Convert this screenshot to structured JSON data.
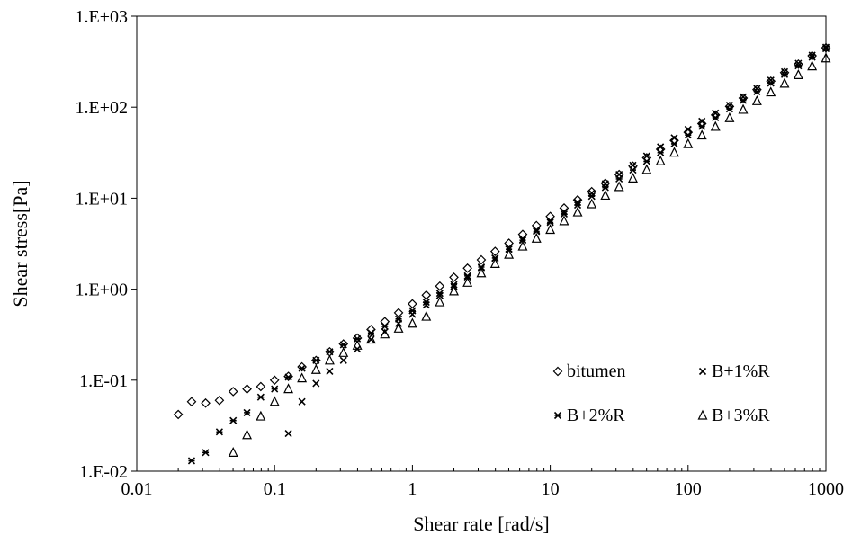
{
  "chart_data": {
    "type": "scatter",
    "xlabel": "Shear rate [rad/s]",
    "ylabel": "Shear stress[Pa]",
    "xscale": "log",
    "yscale": "log",
    "xlim": [
      0.01,
      1000
    ],
    "ylim": [
      0.01,
      1000
    ],
    "x_ticks": [
      "0.01",
      "0.1",
      "1",
      "10",
      "100",
      "1000"
    ],
    "y_ticks": [
      "1.E-02",
      "1.E-01",
      "1.E+00",
      "1.E+01",
      "1.E+02",
      "1.E+03"
    ],
    "grid": false,
    "legend_position": "bottom-right",
    "series": [
      {
        "name": "bitumen",
        "marker": "diamond",
        "points": [
          [
            0.02,
            0.042
          ],
          [
            0.025,
            0.058
          ],
          [
            0.0316,
            0.056
          ],
          [
            0.0398,
            0.06
          ],
          [
            0.0501,
            0.075
          ],
          [
            0.0631,
            0.08
          ],
          [
            0.0794,
            0.085
          ],
          [
            0.1,
            0.1
          ],
          [
            0.126,
            0.11
          ],
          [
            0.158,
            0.14
          ],
          [
            0.2,
            0.165
          ],
          [
            0.251,
            0.205
          ],
          [
            0.316,
            0.25
          ],
          [
            0.398,
            0.29
          ],
          [
            0.501,
            0.36
          ],
          [
            0.631,
            0.44
          ],
          [
            0.794,
            0.55
          ],
          [
            1,
            0.69
          ],
          [
            1.26,
            0.86
          ],
          [
            1.58,
            1.08
          ],
          [
            2,
            1.35
          ],
          [
            2.51,
            1.7
          ],
          [
            3.16,
            2.1
          ],
          [
            3.98,
            2.6
          ],
          [
            5.01,
            3.2
          ],
          [
            6.31,
            4.0
          ],
          [
            7.94,
            5.0
          ],
          [
            10,
            6.3
          ],
          [
            12.6,
            7.8
          ],
          [
            15.8,
            9.6
          ],
          [
            20,
            11.8
          ],
          [
            25.1,
            14.6
          ],
          [
            31.6,
            18.2
          ],
          [
            39.8,
            22.5
          ],
          [
            50.1,
            27.8
          ],
          [
            63.1,
            34.5
          ],
          [
            79.4,
            43
          ],
          [
            100,
            53
          ],
          [
            126,
            66
          ],
          [
            158,
            82
          ],
          [
            200,
            102
          ],
          [
            251,
            126
          ],
          [
            316,
            156
          ],
          [
            398,
            193
          ],
          [
            501,
            240
          ],
          [
            631,
            297
          ],
          [
            794,
            367
          ],
          [
            1000,
            450
          ]
        ]
      },
      {
        "name": "B+1%R",
        "marker": "x",
        "points": [
          [
            0.126,
            0.026
          ],
          [
            0.158,
            0.058
          ],
          [
            0.2,
            0.092
          ],
          [
            0.251,
            0.125
          ],
          [
            0.316,
            0.165
          ],
          [
            0.398,
            0.22
          ],
          [
            0.501,
            0.28
          ],
          [
            0.631,
            0.34
          ],
          [
            0.794,
            0.42
          ],
          [
            1,
            0.53
          ],
          [
            1.26,
            0.67
          ],
          [
            1.58,
            0.85
          ],
          [
            2,
            1.07
          ],
          [
            2.51,
            1.36
          ],
          [
            3.16,
            1.72
          ],
          [
            3.98,
            2.18
          ],
          [
            5.01,
            2.76
          ],
          [
            6.31,
            3.5
          ],
          [
            7.94,
            4.42
          ],
          [
            10,
            5.6
          ],
          [
            12.6,
            7.1
          ],
          [
            15.8,
            9.0
          ],
          [
            20,
            11.4
          ],
          [
            25.1,
            14.4
          ],
          [
            31.6,
            18.2
          ],
          [
            39.8,
            23
          ],
          [
            50.1,
            29
          ],
          [
            63.1,
            36.6
          ],
          [
            79.4,
            46
          ],
          [
            100,
            57
          ],
          [
            126,
            70
          ],
          [
            158,
            86
          ],
          [
            200,
            105
          ],
          [
            251,
            130
          ],
          [
            316,
            160
          ],
          [
            398,
            198
          ],
          [
            501,
            245
          ],
          [
            631,
            303
          ],
          [
            794,
            372
          ],
          [
            1000,
            455
          ]
        ]
      },
      {
        "name": "B+2%R",
        "marker": "asterisk",
        "points": [
          [
            0.025,
            0.013
          ],
          [
            0.0316,
            0.016
          ],
          [
            0.0398,
            0.027
          ],
          [
            0.0501,
            0.036
          ],
          [
            0.0631,
            0.044
          ],
          [
            0.0794,
            0.065
          ],
          [
            0.1,
            0.08
          ],
          [
            0.126,
            0.108
          ],
          [
            0.158,
            0.135
          ],
          [
            0.2,
            0.165
          ],
          [
            0.251,
            0.205
          ],
          [
            0.316,
            0.245
          ],
          [
            0.398,
            0.285
          ],
          [
            0.501,
            0.33
          ],
          [
            0.631,
            0.39
          ],
          [
            0.794,
            0.47
          ],
          [
            1,
            0.58
          ],
          [
            1.26,
            0.72
          ],
          [
            1.58,
            0.9
          ],
          [
            2,
            1.12
          ],
          [
            2.51,
            1.4
          ],
          [
            3.16,
            1.75
          ],
          [
            3.98,
            2.2
          ],
          [
            5.01,
            2.75
          ],
          [
            6.31,
            3.45
          ],
          [
            7.94,
            4.3
          ],
          [
            10,
            5.4
          ],
          [
            12.6,
            6.7
          ],
          [
            15.8,
            8.4
          ],
          [
            20,
            10.5
          ],
          [
            25.1,
            13.1
          ],
          [
            31.6,
            16.3
          ],
          [
            39.8,
            20.4
          ],
          [
            50.1,
            25.4
          ],
          [
            63.1,
            31.7
          ],
          [
            79.4,
            39.6
          ],
          [
            100,
            49.4
          ],
          [
            126,
            61.5
          ],
          [
            158,
            76.6
          ],
          [
            200,
            95.5
          ],
          [
            251,
            119
          ],
          [
            316,
            148
          ],
          [
            398,
            184
          ],
          [
            501,
            229
          ],
          [
            631,
            285
          ],
          [
            794,
            355
          ],
          [
            1000,
            440
          ]
        ]
      },
      {
        "name": "B+3%R",
        "marker": "triangle",
        "points": [
          [
            0.0501,
            0.016
          ],
          [
            0.0631,
            0.025
          ],
          [
            0.0794,
            0.04
          ],
          [
            0.1,
            0.058
          ],
          [
            0.126,
            0.08
          ],
          [
            0.158,
            0.105
          ],
          [
            0.2,
            0.13
          ],
          [
            0.251,
            0.165
          ],
          [
            0.316,
            0.2
          ],
          [
            0.398,
            0.24
          ],
          [
            0.501,
            0.28
          ],
          [
            0.631,
            0.32
          ],
          [
            0.794,
            0.37
          ],
          [
            1,
            0.42
          ],
          [
            1.26,
            0.5
          ],
          [
            1.58,
            0.72
          ],
          [
            2,
            0.95
          ],
          [
            2.51,
            1.18
          ],
          [
            3.16,
            1.5
          ],
          [
            3.98,
            1.9
          ],
          [
            5.01,
            2.4
          ],
          [
            6.31,
            2.95
          ],
          [
            7.94,
            3.6
          ],
          [
            10,
            4.5
          ],
          [
            12.6,
            5.6
          ],
          [
            15.8,
            7.0
          ],
          [
            20,
            8.6
          ],
          [
            25.1,
            10.7
          ],
          [
            31.6,
            13.3
          ],
          [
            39.8,
            16.5
          ],
          [
            50.1,
            20.5
          ],
          [
            63.1,
            25.5
          ],
          [
            79.4,
            31.7
          ],
          [
            100,
            39.4
          ],
          [
            126,
            49
          ],
          [
            158,
            61
          ],
          [
            200,
            76
          ],
          [
            251,
            94
          ],
          [
            316,
            117
          ],
          [
            398,
            146
          ],
          [
            501,
            182
          ],
          [
            631,
            226
          ],
          [
            794,
            282
          ],
          [
            1000,
            345
          ]
        ]
      }
    ]
  }
}
